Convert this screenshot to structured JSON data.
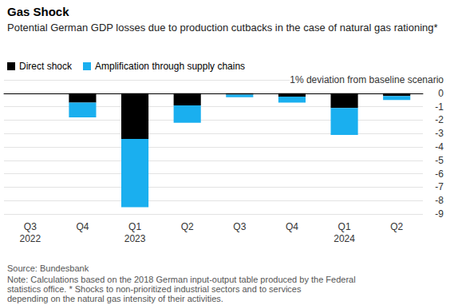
{
  "chart_data": {
    "type": "bar",
    "title": "Gas Shock",
    "subtitle": "Potential German GDP losses due to production cutbacks in the case of natural gas rationing*",
    "categories": [
      "Q3\n2022",
      "Q4",
      "Q1\n2023",
      "Q2",
      "Q3",
      "Q4",
      "Q1\n2024",
      "Q2"
    ],
    "series": [
      {
        "name": "Direct shock",
        "color": "#000000",
        "values": [
          0,
          -0.7,
          -3.4,
          -0.9,
          -0.1,
          -0.25,
          -1.1,
          -0.2
        ]
      },
      {
        "name": "Amplification through supply chains",
        "color": "#1aafef",
        "values": [
          0,
          -1.1,
          -5.1,
          -1.3,
          -0.2,
          -0.45,
          -2.0,
          -0.3
        ]
      }
    ],
    "ylim": [
      -9,
      1
    ],
    "yticks": [
      -9,
      -8,
      -7,
      -6,
      -5,
      -4,
      -3,
      -2,
      -1,
      0,
      {
        "value": 1,
        "label": "1% deviation from baseline scenario"
      }
    ],
    "stacked": true,
    "grid": true,
    "legend": "top-left",
    "source": "Source: Bundesbank",
    "note": "Note: Calculations based on the 2018 German input-output table produced by the Federal statistics office. * Shocks to non-prioritized industrial sectors and to services depending on the natural gas intensity of their activities."
  }
}
